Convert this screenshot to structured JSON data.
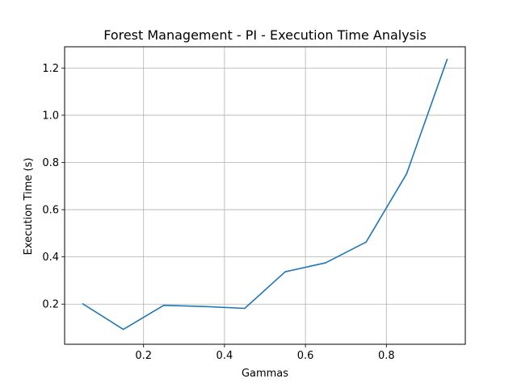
{
  "chart_data": {
    "type": "line",
    "title": "Forest Management - PI - Execution Time Analysis",
    "xlabel": "Gammas",
    "ylabel": "Execution Time (s)",
    "xlim": [
      0.005,
      0.995
    ],
    "ylim": [
      0.03,
      1.29
    ],
    "grid": true,
    "legend": "none",
    "line_color": "#1f77b4",
    "xticks": [
      0.2,
      0.4,
      0.6,
      0.8
    ],
    "xtick_labels": [
      "0.2",
      "0.4",
      "0.6",
      "0.8"
    ],
    "yticks": [
      0.2,
      0.4,
      0.6,
      0.8,
      1.0,
      1.2
    ],
    "ytick_labels": [
      "0.2",
      "0.4",
      "0.6",
      "0.8",
      "1.0",
      "1.2"
    ],
    "series": [
      {
        "x": [
          0.05,
          0.15,
          0.25,
          0.35,
          0.45,
          0.55,
          0.65,
          0.75,
          0.85,
          0.95
        ],
        "values": [
          0.201,
          0.093,
          0.195,
          0.19,
          0.182,
          0.337,
          0.375,
          0.463,
          0.752,
          1.236
        ]
      }
    ]
  }
}
